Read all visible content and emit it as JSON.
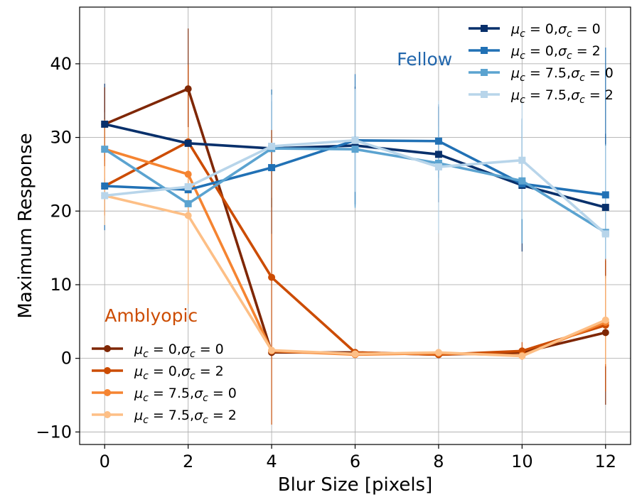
{
  "chart_data": {
    "type": "line",
    "xlabel": "Blur Size [pixels]",
    "ylabel": "Maximum Response",
    "x": [
      0,
      2,
      4,
      6,
      8,
      10,
      12
    ],
    "xlim": [
      -0.6,
      12.6
    ],
    "ylim": [
      -11.7,
      47.7
    ],
    "xticks": [
      0,
      2,
      4,
      6,
      8,
      10,
      12
    ],
    "yticks": [
      -10,
      0,
      10,
      20,
      30,
      40
    ],
    "ytick_labels": [
      "−10",
      "0",
      "10",
      "20",
      "30",
      "40"
    ],
    "grid": true,
    "annotations": [
      {
        "text": "Fellow",
        "color": "#2166ac",
        "x": 7.0,
        "y": 39.8
      },
      {
        "text": "Amblyopic",
        "color": "#cc4c02",
        "x": 0.0,
        "y": 5.0
      }
    ],
    "legends": [
      {
        "placement": "upper-right",
        "group": "fellow"
      },
      {
        "placement": "lower-left",
        "group": "amblyopic"
      }
    ],
    "series": [
      {
        "group": "fellow",
        "mu": "0",
        "sigma": "0",
        "marker": "square",
        "color": "#08306b",
        "values": [
          31.8,
          29.2,
          28.5,
          28.9,
          27.7,
          23.5,
          20.5
        ],
        "err": [
          5.5,
          0,
          8,
          8,
          6.5,
          9,
          10
        ]
      },
      {
        "group": "fellow",
        "mu": "0",
        "sigma": "2",
        "marker": "square",
        "color": "#2171b5",
        "values": [
          23.4,
          22.9,
          25.9,
          29.6,
          29.5,
          23.7,
          22.2
        ],
        "err": [
          6,
          0,
          9,
          9,
          5,
          8,
          20
        ]
      },
      {
        "group": "fellow",
        "mu": "7.5",
        "sigma": "0",
        "marker": "square",
        "color": "#5ba3d0",
        "values": [
          28.4,
          21.0,
          28.5,
          28.4,
          26.5,
          24.1,
          17.1
        ],
        "err": [
          5,
          0,
          8,
          8,
          5,
          8.5,
          12
        ]
      },
      {
        "group": "fellow",
        "mu": "7.5",
        "sigma": "2",
        "marker": "square",
        "color": "#b8d5ea",
        "values": [
          22.1,
          23.3,
          28.8,
          29.6,
          26.0,
          26.9,
          16.9
        ],
        "err": [
          4,
          0,
          7,
          7,
          9,
          8,
          12
        ]
      },
      {
        "group": "amblyopic",
        "mu": "0",
        "sigma": "0",
        "marker": "circle",
        "color": "#7f2704",
        "values": [
          31.8,
          36.6,
          0.8,
          0.8,
          0.5,
          0.8,
          3.5
        ],
        "err": [
          5,
          8.2,
          0,
          0,
          0,
          0,
          9.8
        ]
      },
      {
        "group": "amblyopic",
        "mu": "0",
        "sigma": "2",
        "marker": "circle",
        "color": "#cc4c02",
        "values": [
          23.4,
          29.4,
          11.0,
          0.8,
          0.5,
          1.0,
          4.5
        ],
        "err": [
          4,
          10.5,
          20,
          0,
          0,
          1.2,
          9
        ]
      },
      {
        "group": "amblyopic",
        "mu": "7.5",
        "sigma": "0",
        "marker": "circle",
        "color": "#f58431",
        "values": [
          28.4,
          25.0,
          1.0,
          0.5,
          0.7,
          0.4,
          4.9
        ],
        "err": [
          4,
          0,
          0,
          0,
          0,
          0,
          6
        ]
      },
      {
        "group": "amblyopic",
        "mu": "7.5",
        "sigma": "2",
        "marker": "circle",
        "color": "#fdbf86",
        "values": [
          22.1,
          19.4,
          1.1,
          0.6,
          0.8,
          0.3,
          5.2
        ],
        "err": [
          4,
          12,
          0,
          0,
          0,
          0,
          6
        ]
      }
    ]
  }
}
